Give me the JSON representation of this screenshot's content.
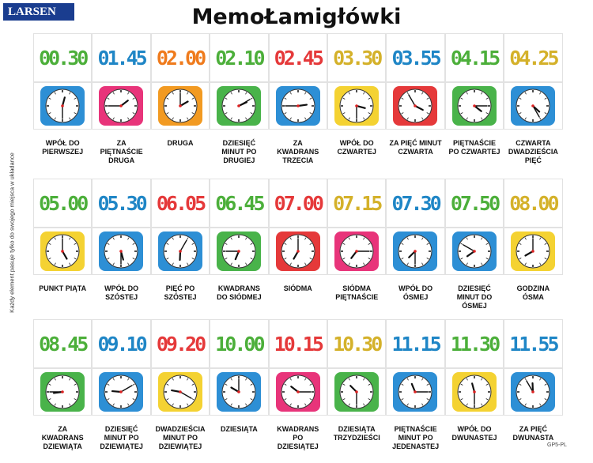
{
  "header": {
    "brand": "LARSEN",
    "title": "MemoŁamigłówki"
  },
  "side_text": "Każdy element pasuje tylko do swojego miejsca w układance",
  "code": "GP5-PL",
  "rows": [
    [
      {
        "time": "00.30",
        "label": "WPÓŁ DO PIERWSZEJ",
        "color": "#4caf3a",
        "frame": "#2d8fd5"
      },
      {
        "time": "01.45",
        "label": "ZA PIĘTNAŚCIE DRUGA",
        "color": "#1f86c6",
        "frame": "#e8347a"
      },
      {
        "time": "02.00",
        "label": "DRUGA",
        "color": "#ef7b1d",
        "frame": "#f29a22"
      },
      {
        "time": "02.10",
        "label": "DZIESIĘĆ MINUT PO DRUGIEJ",
        "color": "#4caf3a",
        "frame": "#49b34a"
      },
      {
        "time": "02.45",
        "label": "ZA KWADRANS TRZECIA",
        "color": "#e5393a",
        "frame": "#2d8fd5"
      },
      {
        "time": "03.30",
        "label": "WPÓŁ DO CZWARTEJ",
        "color": "#d4b12a",
        "frame": "#f4d232"
      },
      {
        "time": "03.55",
        "label": "ZA PIĘĆ MINUT CZWARTA",
        "color": "#1f86c6",
        "frame": "#e5393a"
      },
      {
        "time": "04.15",
        "label": "PIĘTNAŚCIE PO CZWARTEJ",
        "color": "#4caf3a",
        "frame": "#49b34a"
      },
      {
        "time": "04.25",
        "label": "CZWARTA DWADZIEŚCIA PIĘĆ",
        "color": "#d4b12a",
        "frame": "#2d8fd5"
      }
    ],
    [
      {
        "time": "05.00",
        "label": "PUNKT PIĄTA",
        "color": "#4caf3a",
        "frame": "#f4d232"
      },
      {
        "time": "05.30",
        "label": "WPÓŁ DO SZÓSTEJ",
        "color": "#1f86c6",
        "frame": "#2d8fd5"
      },
      {
        "time": "06.05",
        "label": "PIĘĆ PO SZÓSTEJ",
        "color": "#e5393a",
        "frame": "#2d8fd5"
      },
      {
        "time": "06.45",
        "label": "KWADRANS DO SIÓDMEJ",
        "color": "#4caf3a",
        "frame": "#49b34a"
      },
      {
        "time": "07.00",
        "label": "SIÓDMA",
        "color": "#e5393a",
        "frame": "#e5393a"
      },
      {
        "time": "07.15",
        "label": "SIÓDMA PIĘTNAŚCIE",
        "color": "#d4b12a",
        "frame": "#e8347a"
      },
      {
        "time": "07.30",
        "label": "WPÓŁ DO ÓSMEJ",
        "color": "#1f86c6",
        "frame": "#2d8fd5"
      },
      {
        "time": "07.50",
        "label": "DZIESIĘĆ MINUT DO ÓSMEJ",
        "color": "#4caf3a",
        "frame": "#2d8fd5"
      },
      {
        "time": "08.00",
        "label": "GODZINA ÓSMA",
        "color": "#d4b12a",
        "frame": "#f4d232"
      }
    ],
    [
      {
        "time": "08.45",
        "label": "ZA KWADRANS DZIEWIĄTA",
        "color": "#4caf3a",
        "frame": "#49b34a"
      },
      {
        "time": "09.10",
        "label": "DZIESIĘĆ MINUT PO DZIEWIĄTEJ",
        "color": "#1f86c6",
        "frame": "#2d8fd5"
      },
      {
        "time": "09.20",
        "label": "DWADZIEŚCIA MINUT PO DZIEWIĄTEJ",
        "color": "#e5393a",
        "frame": "#f4d232"
      },
      {
        "time": "10.00",
        "label": "DZIESIĄTA",
        "color": "#4caf3a",
        "frame": "#2d8fd5"
      },
      {
        "time": "10.15",
        "label": "KWADRANS PO DZIESIĄTEJ",
        "color": "#e5393a",
        "frame": "#e8347a"
      },
      {
        "time": "10.30",
        "label": "DZIESIĄTA TRZYDZIEŚCI",
        "color": "#d4b12a",
        "frame": "#49b34a"
      },
      {
        "time": "11.15",
        "label": "PIĘTNAŚCIE MINUT PO JEDENASTEJ",
        "color": "#1f86c6",
        "frame": "#2d8fd5"
      },
      {
        "time": "11.30",
        "label": "WPÓŁ DO DWUNASTEJ",
        "color": "#4caf3a",
        "frame": "#f4d232"
      },
      {
        "time": "11.55",
        "label": "ZA PIĘĆ DWUNASTA",
        "color": "#1f86c6",
        "frame": "#2d8fd5"
      }
    ]
  ]
}
